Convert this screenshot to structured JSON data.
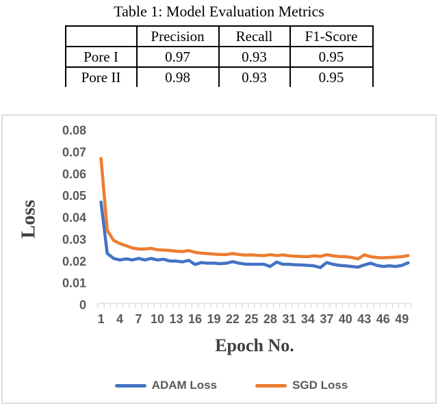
{
  "table_section": {
    "title": "Table 1: Model Evaluation Metrics",
    "columns": [
      "",
      "Precision",
      "Recall",
      "F1-Score"
    ],
    "rows": [
      {
        "label": "Pore I",
        "values": [
          "0.97",
          "0.93",
          "0.95"
        ]
      },
      {
        "label": "Pore II",
        "values": [
          "0.98",
          "0.93",
          "0.95"
        ]
      }
    ]
  },
  "chart_data": {
    "type": "line",
    "title": "",
    "xlabel": "Epoch No.",
    "ylabel": "Loss",
    "ylim": [
      0,
      0.08
    ],
    "grid": false,
    "legend_position": "bottom",
    "ytick_labels": [
      "0",
      "0.01",
      "0.02",
      "0.03",
      "0.04",
      "0.05",
      "0.06",
      "0.07",
      "0.08"
    ],
    "xtick_labels": [
      1,
      4,
      7,
      10,
      13,
      16,
      19,
      22,
      25,
      28,
      31,
      34,
      37,
      40,
      43,
      46,
      49
    ],
    "x": [
      1,
      2,
      3,
      4,
      5,
      6,
      7,
      8,
      9,
      10,
      11,
      12,
      13,
      14,
      15,
      16,
      17,
      18,
      19,
      20,
      21,
      22,
      23,
      24,
      25,
      26,
      27,
      28,
      29,
      30,
      31,
      32,
      33,
      34,
      35,
      36,
      37,
      38,
      39,
      40,
      41,
      42,
      43,
      44,
      45,
      46,
      47,
      48,
      49,
      50
    ],
    "series": [
      {
        "name": "ADAM Loss",
        "color": "#4472C4",
        "values": [
          0.047,
          0.0235,
          0.0212,
          0.0205,
          0.021,
          0.0205,
          0.0212,
          0.0205,
          0.0212,
          0.0205,
          0.0208,
          0.02,
          0.02,
          0.0196,
          0.0203,
          0.0184,
          0.0193,
          0.019,
          0.019,
          0.0188,
          0.019,
          0.0197,
          0.019,
          0.0186,
          0.0185,
          0.0185,
          0.0185,
          0.0175,
          0.0195,
          0.0185,
          0.0185,
          0.0183,
          0.0182,
          0.018,
          0.0178,
          0.017,
          0.0193,
          0.0185,
          0.018,
          0.0178,
          0.0175,
          0.0172,
          0.0182,
          0.019,
          0.018,
          0.0175,
          0.0178,
          0.0175,
          0.018,
          0.0192
        ]
      },
      {
        "name": "SGD Loss",
        "color": "#ED7D31",
        "values": [
          0.067,
          0.034,
          0.0295,
          0.028,
          0.027,
          0.026,
          0.0255,
          0.0255,
          0.0258,
          0.0252,
          0.025,
          0.0248,
          0.0245,
          0.0243,
          0.0248,
          0.024,
          0.0236,
          0.0234,
          0.0232,
          0.023,
          0.023,
          0.0234,
          0.023,
          0.0227,
          0.0228,
          0.0226,
          0.0225,
          0.0229,
          0.0225,
          0.0228,
          0.0224,
          0.0222,
          0.0221,
          0.022,
          0.0224,
          0.0221,
          0.0229,
          0.0224,
          0.0221,
          0.022,
          0.0216,
          0.021,
          0.0228,
          0.022,
          0.0216,
          0.0215,
          0.0216,
          0.0218,
          0.022,
          0.0225
        ]
      }
    ],
    "colors": {
      "axis_tick_labels": "#595959",
      "axis_titles": "#3f3f3f",
      "legend_text": "#595959",
      "frame_border": "#dcdcdc",
      "tick_marks": "#d9d9d9"
    }
  }
}
